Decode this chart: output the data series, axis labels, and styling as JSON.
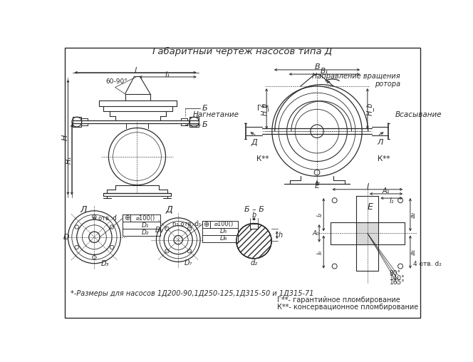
{
  "title": "Габаритный чертеж насосов типа Д",
  "bg_color": "#ffffff",
  "line_color": "#2a2a2a",
  "footnote1": "*-Размеры для насосов 1Д200-90,1Д250-125,1Д315-50 и 1Д315-71",
  "footnote2": "Г**- гарантийное пломбирование",
  "footnote3": "К**- консервационное пломбирование",
  "label_direction": "Направление вращения\nротора",
  "label_nagn": "Нагнетание",
  "label_vsas": "Всасывание"
}
